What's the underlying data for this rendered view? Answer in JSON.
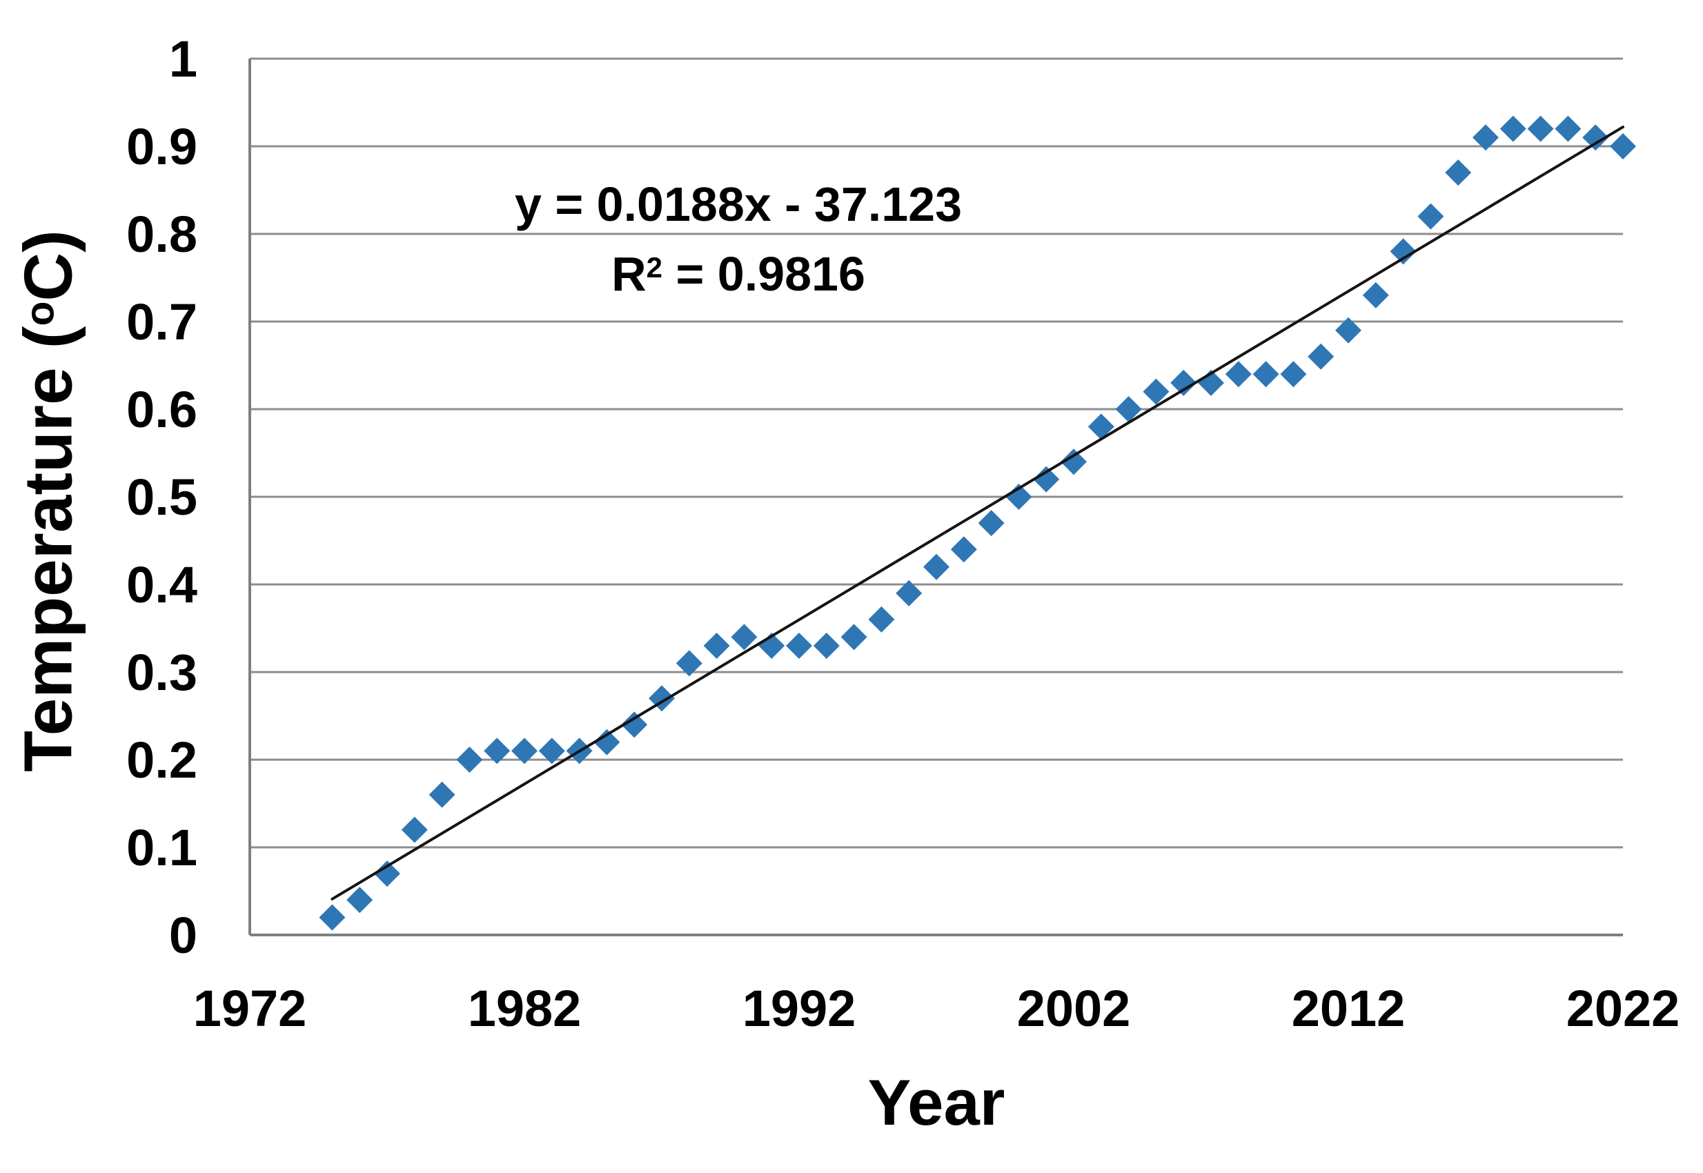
{
  "figure": {
    "equation": "y = 0.0188x - 37.123",
    "r2": {
      "prefix": "R",
      "sup": "2",
      "suffix": " = 0.9816"
    },
    "x_axis_title": "Year",
    "y_axis_title": {
      "prefix": "Temperature (",
      "sup": "o",
      "suffix": "C)"
    }
  },
  "chart_data": {
    "type": "scatter",
    "title": "",
    "xlabel": "Year",
    "ylabel": "Temperature (°C)",
    "xlim": [
      1972,
      2022
    ],
    "ylim": [
      0,
      1
    ],
    "grid": "horizontal",
    "legend": "none",
    "x_ticks": [
      [
        1972,
        "1972"
      ],
      [
        1982,
        "1982"
      ],
      [
        1992,
        "1992"
      ],
      [
        2002,
        "2002"
      ],
      [
        2012,
        "2012"
      ],
      [
        2022,
        "2022"
      ]
    ],
    "y_ticks": [
      [
        0,
        "0"
      ],
      [
        0.1,
        "0.1"
      ],
      [
        0.2,
        "0.2"
      ],
      [
        0.3,
        "0.3"
      ],
      [
        0.4,
        "0.4"
      ],
      [
        0.5,
        "0.5"
      ],
      [
        0.6,
        "0.6"
      ],
      [
        0.7,
        "0.7"
      ],
      [
        0.8,
        "0.8"
      ],
      [
        0.9,
        "0.9"
      ],
      [
        1,
        "1"
      ]
    ],
    "colors": {
      "marker": "#2F76B5",
      "grid": "#8D8D8D",
      "axis": "#7F7F7F",
      "trendline": "#141414",
      "text": "#000000"
    },
    "marker_shape": "diamond",
    "series": [
      {
        "name": "Temperature",
        "points": [
          [
            1975,
            0.02
          ],
          [
            1976,
            0.04
          ],
          [
            1977,
            0.07
          ],
          [
            1978,
            0.12
          ],
          [
            1979,
            0.16
          ],
          [
            1980,
            0.2
          ],
          [
            1981,
            0.21
          ],
          [
            1982,
            0.21
          ],
          [
            1983,
            0.21
          ],
          [
            1984,
            0.21
          ],
          [
            1985,
            0.22
          ],
          [
            1986,
            0.24
          ],
          [
            1987,
            0.27
          ],
          [
            1988,
            0.31
          ],
          [
            1989,
            0.33
          ],
          [
            1990,
            0.34
          ],
          [
            1991,
            0.33
          ],
          [
            1992,
            0.33
          ],
          [
            1993,
            0.33
          ],
          [
            1994,
            0.34
          ],
          [
            1995,
            0.36
          ],
          [
            1996,
            0.39
          ],
          [
            1997,
            0.42
          ],
          [
            1998,
            0.44
          ],
          [
            1999,
            0.47
          ],
          [
            2000,
            0.5
          ],
          [
            2001,
            0.52
          ],
          [
            2002,
            0.54
          ],
          [
            2003,
            0.58
          ],
          [
            2004,
            0.6
          ],
          [
            2005,
            0.62
          ],
          [
            2006,
            0.63
          ],
          [
            2007,
            0.63
          ],
          [
            2008,
            0.64
          ],
          [
            2009,
            0.64
          ],
          [
            2010,
            0.64
          ],
          [
            2011,
            0.66
          ],
          [
            2012,
            0.69
          ],
          [
            2013,
            0.73
          ],
          [
            2014,
            0.78
          ],
          [
            2015,
            0.82
          ],
          [
            2016,
            0.87
          ],
          [
            2017,
            0.91
          ],
          [
            2018,
            0.92
          ],
          [
            2019,
            0.92
          ],
          [
            2020,
            0.92
          ],
          [
            2021,
            0.91
          ],
          [
            2022,
            0.9
          ]
        ]
      }
    ],
    "trendline": {
      "equation": "y = 0.0188x - 37.123",
      "r_squared": 0.9816,
      "draw_from": [
        1975,
        0.041
      ],
      "draw_to": [
        2022,
        0.922
      ]
    }
  }
}
